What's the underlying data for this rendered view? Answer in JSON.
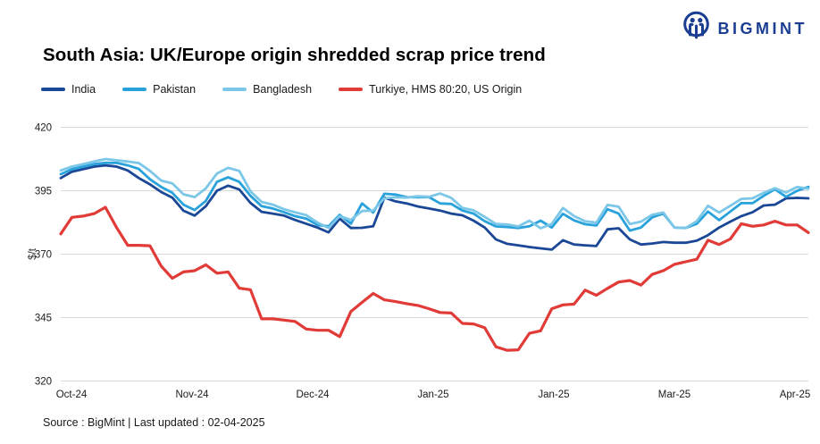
{
  "header": {
    "title": "South Asia: UK/Europe origin shredded scrap price trend",
    "brand": "BIGMINT"
  },
  "source_line": "Source : BigMint | Last updated : 02-04-2025",
  "chart_data": {
    "type": "line",
    "title": "South Asia: UK/Europe origin shredded scrap price trend",
    "xlabel": "",
    "ylabel": "$/t",
    "ylim": [
      320,
      420
    ],
    "yticks": [
      420,
      395,
      370,
      345,
      320
    ],
    "grid": "horizontal",
    "gridline_color": "#d9d9d9",
    "legend_position": "top-left",
    "x_tick_labels": [
      "Oct-24",
      "Nov-24",
      "Dec-24",
      "Jan-25",
      "Jan-25",
      "Mar-25",
      "Apr-25"
    ],
    "series": [
      {
        "name": "India",
        "color": "#1a4796",
        "values": [
          400,
          402.5,
          403.5,
          404.5,
          405,
          404.5,
          403,
          400,
          397.5,
          394.5,
          392.3,
          387.1,
          385.2,
          388.9,
          395,
          397,
          395.5,
          390.2,
          386.7,
          386,
          385.2,
          383.5,
          382,
          380.5,
          378.6,
          384,
          380.3,
          380.4,
          381,
          392.3,
          390.8,
          390,
          388.8,
          388,
          387.2,
          386,
          385.3,
          383.2,
          380.5,
          375.8,
          374.1,
          373.5,
          372.8,
          372.3,
          371.8,
          375.5,
          373.8,
          373.5,
          373.2,
          379.8,
          380.2,
          375.8,
          373.8,
          374.2,
          374.8,
          374.5,
          374.5,
          375.3,
          377.5,
          380.5,
          382.8,
          385,
          386.5,
          389.2,
          389.5,
          392,
          392.2,
          392
        ]
      },
      {
        "name": "Pakistan",
        "color": "#29a2dc",
        "values": [
          401.5,
          403.5,
          404.5,
          405.5,
          406,
          406,
          405,
          403.6,
          399.5,
          396.5,
          394.2,
          389.5,
          387.4,
          391,
          398.5,
          400.3,
          398.5,
          393,
          388.9,
          388,
          386.5,
          385,
          384,
          381.5,
          381,
          385.5,
          382,
          390,
          386.4,
          393.8,
          393.5,
          392.5,
          392.4,
          392.5,
          390,
          389.8,
          387.2,
          386,
          383,
          380.9,
          380.7,
          380.3,
          381,
          383.2,
          380.5,
          385.9,
          383.3,
          381.8,
          381.3,
          387.7,
          386,
          379.3,
          380.5,
          384.5,
          386,
          380.5,
          380.3,
          382,
          386.8,
          383.4,
          386.8,
          390.1,
          390.1,
          393,
          395.6,
          392.6,
          395,
          396.5
        ]
      },
      {
        "name": "Bangladesh",
        "color": "#7cc7e8",
        "values": [
          403,
          404.5,
          405.5,
          406.5,
          407.5,
          407,
          406.5,
          405.9,
          402.8,
          399,
          397.9,
          393.6,
          392.5,
          395.9,
          401.8,
          404,
          402.8,
          394.8,
          390.6,
          389.5,
          387.7,
          386.5,
          385.4,
          382.5,
          380.3,
          385,
          383.5,
          387,
          387.2,
          392,
          392.4,
          392.3,
          392.8,
          392.6,
          393.9,
          392.2,
          388.2,
          387.3,
          384.7,
          381.9,
          381.7,
          380.9,
          383.2,
          380.2,
          381.9,
          388.2,
          385,
          383,
          382.4,
          389.4,
          388.7,
          381.9,
          382.8,
          385.5,
          386.4,
          380.5,
          380.3,
          383,
          389.1,
          386.4,
          389.1,
          391.8,
          392,
          394.2,
          396,
          394.3,
          396.5,
          395.8
        ]
      },
      {
        "name": "Turkiye, HMS 80:20, US Origin",
        "color": "#e13b38",
        "values": [
          378,
          384.5,
          385,
          386,
          388.5,
          380.5,
          373.5,
          373.5,
          373.3,
          365.3,
          360.5,
          363,
          363.5,
          365.8,
          362.5,
          363,
          356.6,
          356,
          344.5,
          344.5,
          344,
          343.5,
          340.5,
          340,
          340,
          337.5,
          347.4,
          351,
          354.5,
          352,
          351.3,
          350.5,
          349.8,
          348.5,
          347,
          346.8,
          342.7,
          342.5,
          341,
          333.5,
          332.1,
          332.3,
          338.8,
          339.8,
          348.5,
          350,
          350.3,
          355.8,
          353.8,
          356.5,
          359,
          359.6,
          357.8,
          362,
          363.5,
          366,
          367,
          368,
          375.5,
          373.8,
          376,
          382,
          381,
          381.5,
          383,
          381.5,
          381.5,
          378.5
        ]
      }
    ]
  }
}
